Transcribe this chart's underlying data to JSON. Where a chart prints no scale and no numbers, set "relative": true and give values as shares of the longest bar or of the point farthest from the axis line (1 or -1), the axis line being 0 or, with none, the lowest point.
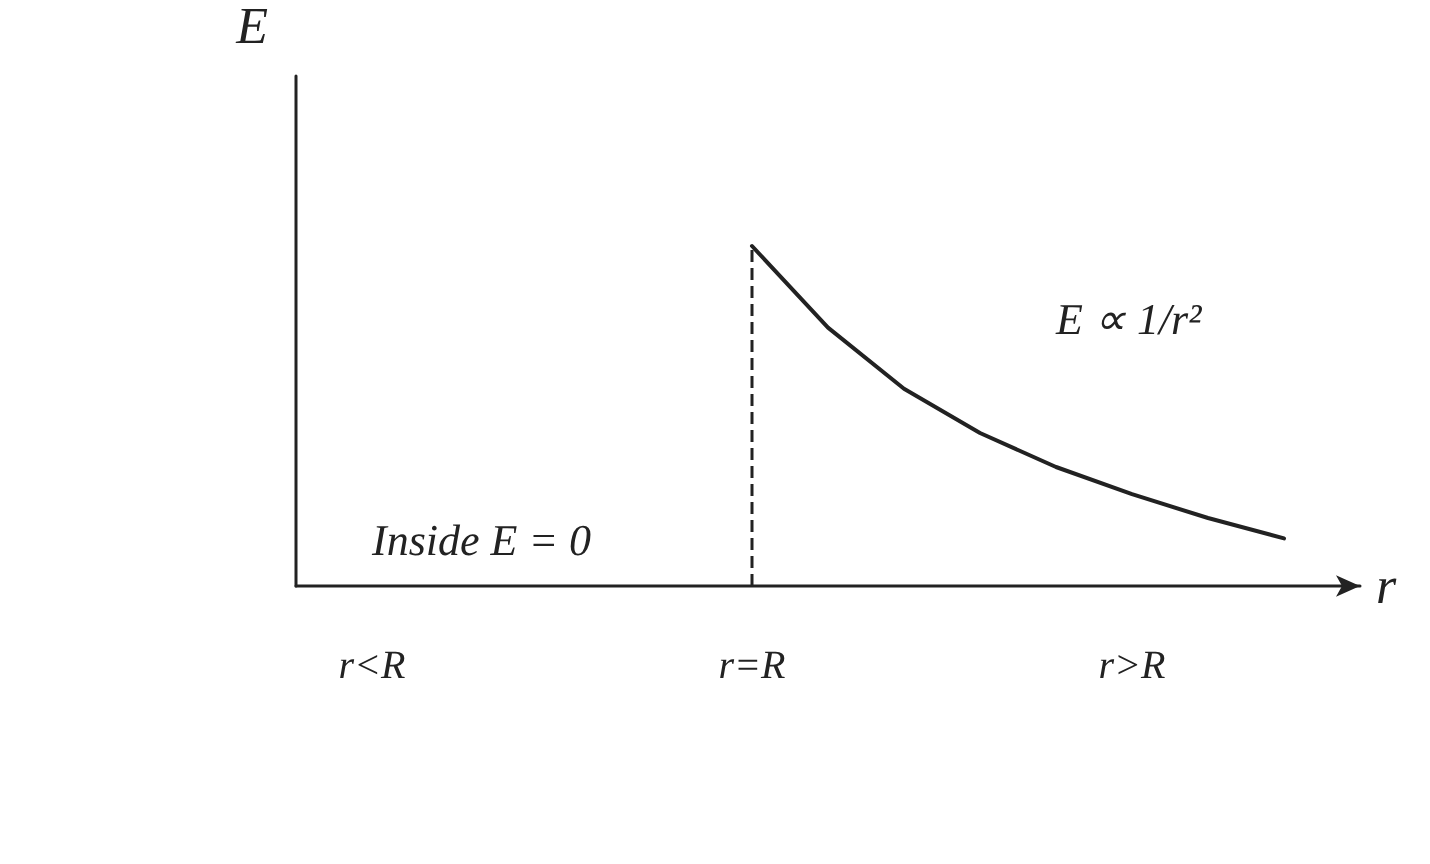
{
  "chart_data": {
    "type": "line",
    "relative": true,
    "xlabel": "r",
    "ylabel": "E",
    "categories": [
      null,
      "r<R",
      null,
      null,
      null,
      null,
      "r=R",
      null,
      null,
      null,
      null,
      "r>R",
      null,
      null,
      null
    ],
    "series": [
      {
        "color": "#222222",
        "values": [
          null,
          null,
          null,
          null,
          null,
          null,
          1,
          0.76,
          0.58,
          0.45,
          0.35,
          0.27,
          0.2,
          0.14,
          null
        ]
      }
    ],
    "ref_lines": [
      {
        "axis": "x",
        "value": "r=R",
        "color": "#222222",
        "line_style": "dashed"
      }
    ],
    "annotations": [
      "Inside E = 0",
      "E ∝ 1/r²"
    ],
    "grid": false,
    "marker": "none",
    "line_style": "solid",
    "tick_labels": "x"
  }
}
